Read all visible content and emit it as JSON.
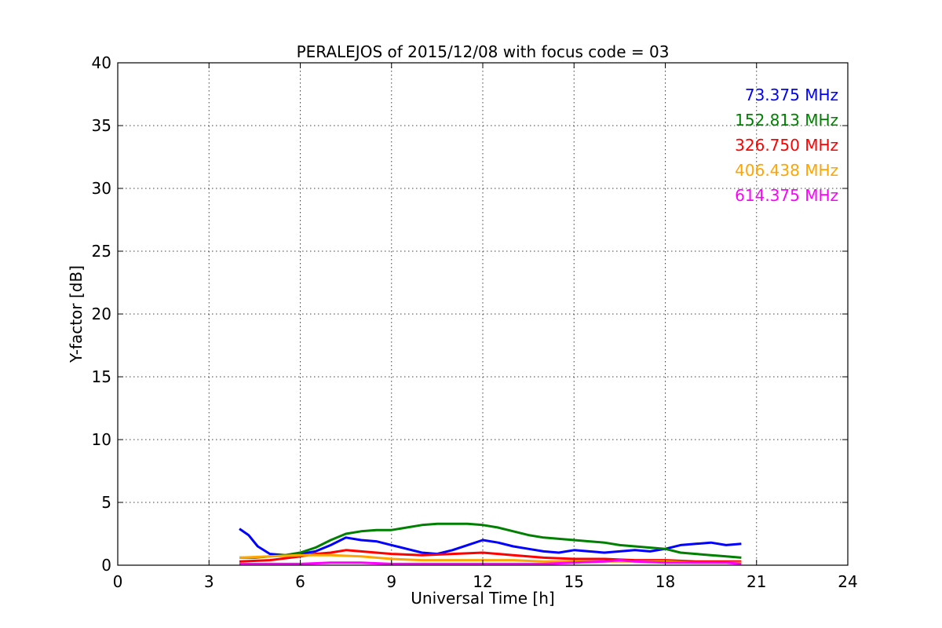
{
  "chart_data": {
    "type": "line",
    "title": "PERALEJOS of 2015/12/08 with focus code = 03",
    "xlabel": "Universal Time [h]",
    "ylabel": "Y-factor [dB]",
    "xlim": [
      0,
      24
    ],
    "ylim": [
      0,
      40
    ],
    "xticks": [
      0,
      3,
      6,
      9,
      12,
      15,
      18,
      21,
      24
    ],
    "yticks": [
      0,
      5,
      10,
      15,
      20,
      25,
      30,
      35,
      40
    ],
    "grid": true,
    "legend_position": "top-right",
    "series": [
      {
        "name": "73.375 MHz",
        "color": "#0000ff",
        "x": [
          4.0,
          4.3,
          4.6,
          5.0,
          5.5,
          6.0,
          6.5,
          7.0,
          7.5,
          8.0,
          8.5,
          9.0,
          9.5,
          10.0,
          10.5,
          11.0,
          11.5,
          12.0,
          12.5,
          13.0,
          13.5,
          14.0,
          14.5,
          15.0,
          15.5,
          16.0,
          16.5,
          17.0,
          17.5,
          18.0,
          18.5,
          19.0,
          19.5,
          20.0,
          20.5
        ],
        "values": [
          2.9,
          2.4,
          1.5,
          0.9,
          0.8,
          0.9,
          1.1,
          1.6,
          2.2,
          2.0,
          1.9,
          1.6,
          1.3,
          1.0,
          0.9,
          1.2,
          1.6,
          2.0,
          1.8,
          1.5,
          1.3,
          1.1,
          1.0,
          1.2,
          1.1,
          1.0,
          1.1,
          1.2,
          1.1,
          1.3,
          1.6,
          1.7,
          1.8,
          1.6,
          1.7
        ]
      },
      {
        "name": "152.813 MHz",
        "color": "#008000",
        "x": [
          4.0,
          4.5,
          5.0,
          5.5,
          6.0,
          6.5,
          7.0,
          7.5,
          8.0,
          8.5,
          9.0,
          9.5,
          10.0,
          10.5,
          11.0,
          11.5,
          12.0,
          12.5,
          13.0,
          13.5,
          14.0,
          14.5,
          15.0,
          15.5,
          16.0,
          16.5,
          17.0,
          17.5,
          18.0,
          18.5,
          19.0,
          19.5,
          20.0,
          20.5
        ],
        "values": [
          0.6,
          0.6,
          0.7,
          0.8,
          1.0,
          1.4,
          2.0,
          2.5,
          2.7,
          2.8,
          2.8,
          3.0,
          3.2,
          3.3,
          3.3,
          3.3,
          3.2,
          3.0,
          2.7,
          2.4,
          2.2,
          2.1,
          2.0,
          1.9,
          1.8,
          1.6,
          1.5,
          1.4,
          1.3,
          1.0,
          0.9,
          0.8,
          0.7,
          0.6
        ]
      },
      {
        "name": "326.750 MHz",
        "color": "#ff0000",
        "x": [
          4.0,
          5.0,
          6.0,
          6.5,
          7.0,
          7.5,
          8.0,
          8.5,
          9.0,
          10.0,
          11.0,
          12.0,
          13.0,
          14.0,
          15.0,
          16.0,
          17.0,
          18.0,
          19.0,
          20.0,
          20.5
        ],
        "values": [
          0.3,
          0.4,
          0.7,
          0.9,
          1.0,
          1.2,
          1.1,
          1.0,
          0.9,
          0.8,
          0.9,
          1.0,
          0.8,
          0.6,
          0.5,
          0.5,
          0.4,
          0.4,
          0.3,
          0.3,
          0.3
        ]
      },
      {
        "name": "406.438 MHz",
        "color": "#ffa500",
        "x": [
          4.0,
          5.0,
          6.0,
          7.0,
          8.0,
          9.0,
          10.0,
          11.0,
          12.0,
          13.0,
          14.0,
          15.0,
          16.0,
          17.0,
          18.0,
          19.0,
          20.0,
          20.5
        ],
        "values": [
          0.6,
          0.7,
          0.8,
          0.8,
          0.7,
          0.5,
          0.4,
          0.4,
          0.4,
          0.4,
          0.3,
          0.3,
          0.3,
          0.3,
          0.3,
          0.2,
          0.2,
          0.2
        ]
      },
      {
        "name": "614.375 MHz",
        "color": "#ff00ff",
        "x": [
          4.0,
          5.0,
          6.0,
          7.0,
          8.0,
          9.0,
          10.0,
          11.0,
          12.0,
          13.0,
          14.0,
          15.0,
          16.0,
          16.5,
          17.0,
          18.0,
          19.0,
          20.0,
          20.5
        ],
        "values": [
          0.1,
          0.1,
          0.1,
          0.2,
          0.2,
          0.1,
          0.1,
          0.1,
          0.1,
          0.1,
          0.1,
          0.2,
          0.3,
          0.4,
          0.3,
          0.2,
          0.2,
          0.2,
          0.1
        ]
      }
    ]
  }
}
